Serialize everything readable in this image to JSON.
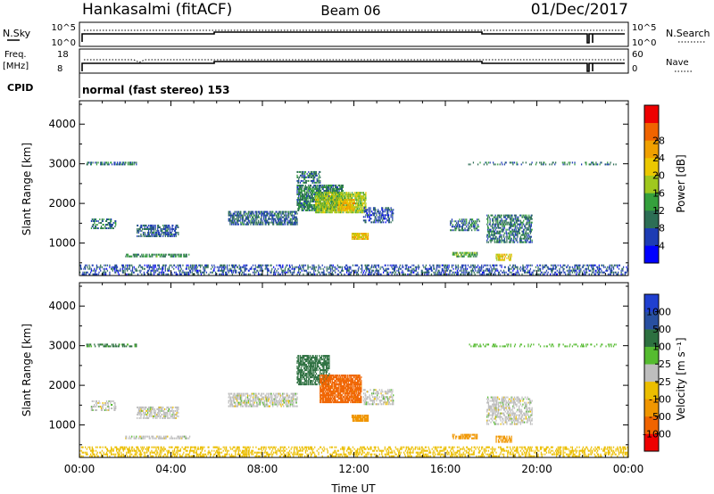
{
  "header": {
    "station": "Hankasalmi (fitACF)",
    "beam": "Beam 06",
    "date": "01/Dec/2017"
  },
  "side_labels": {
    "nsky": "N.Sky",
    "nsearch": "N.Search",
    "freq_line1": "Freq.",
    "freq_line2": "[MHz]",
    "nave": "Nave",
    "cpid": "CPID",
    "cpid_value": "normal (fast stereo) 153",
    "nsky_ticks": [
      "10^5",
      "10^0"
    ],
    "nsearch_ticks": [
      "10^5",
      "10^0"
    ],
    "freq_ticks": [
      "18",
      "8"
    ],
    "nave_ticks": [
      "60",
      "0"
    ]
  },
  "colorbars": {
    "power": {
      "label": "Power [dB]",
      "ticks": [
        "4",
        "8",
        "12",
        "16",
        "20",
        "24",
        "28"
      ],
      "colors": [
        "#0000ff",
        "#1e3cb4",
        "#2d6e55",
        "#35a03c",
        "#a0c81e",
        "#ebc800",
        "#f0a000",
        "#f06400",
        "#ee0000"
      ]
    },
    "velocity": {
      "label": "Velocity [m s⁻¹]",
      "ticks": [
        "1000",
        "500",
        "100",
        "25",
        "-25",
        "-100",
        "-500",
        "-1000"
      ],
      "colors": [
        "#2040d0",
        "#284fa0",
        "#2d7040",
        "#55bb30",
        "#bebebe",
        "#ebbe00",
        "#f09600",
        "#f06400",
        "#ee0000"
      ]
    }
  },
  "chart_data": [
    {
      "type": "heatmap",
      "name": "Power",
      "xlabel": "",
      "ylabel": "Slant Range [km]",
      "x_ticks": [
        "00:00",
        "04:00",
        "08:00",
        "12:00",
        "16:00",
        "20:00",
        "00:00"
      ],
      "y_ticks": [
        "1000",
        "2000",
        "3000",
        "4000"
      ],
      "x_range_hours": [
        0,
        24
      ],
      "y_range_km": [
        180,
        4590
      ],
      "colorbar": "Power [dB]",
      "value_range": [
        0,
        30
      ],
      "regions": [
        {
          "t0": 0.0,
          "t1": 24.0,
          "r0": 190,
          "r1": 420,
          "v": 6,
          "density": 0.35
        },
        {
          "t0": 0.3,
          "t1": 2.5,
          "r0": 2960,
          "r1": 3020,
          "v": 8,
          "density": 0.45
        },
        {
          "t0": 0.5,
          "t1": 1.6,
          "r0": 1350,
          "r1": 1620,
          "v": 8,
          "density": 0.4
        },
        {
          "t0": 2.5,
          "t1": 4.3,
          "r0": 1150,
          "r1": 1450,
          "v": 7,
          "density": 0.55
        },
        {
          "t0": 2.0,
          "t1": 4.8,
          "r0": 640,
          "r1": 720,
          "v": 10,
          "density": 0.5
        },
        {
          "t0": 6.5,
          "t1": 9.5,
          "r0": 1450,
          "r1": 1800,
          "v": 7,
          "density": 0.6
        },
        {
          "t0": 9.5,
          "t1": 11.5,
          "r0": 1800,
          "r1": 2450,
          "v": 9,
          "density": 0.7
        },
        {
          "t0": 10.3,
          "t1": 12.5,
          "r0": 1750,
          "r1": 2250,
          "v": 15,
          "density": 0.75
        },
        {
          "t0": 11.3,
          "t1": 12.0,
          "r0": 1800,
          "r1": 2100,
          "v": 20,
          "density": 0.7
        },
        {
          "t0": 11.9,
          "t1": 12.6,
          "r0": 1080,
          "r1": 1250,
          "v": 19,
          "density": 0.8
        },
        {
          "t0": 12.4,
          "t1": 13.7,
          "r0": 1500,
          "r1": 1900,
          "v": 6,
          "density": 0.45
        },
        {
          "t0": 16.2,
          "t1": 17.5,
          "r0": 1300,
          "r1": 1600,
          "v": 8,
          "density": 0.45
        },
        {
          "t0": 16.3,
          "t1": 17.4,
          "r0": 640,
          "r1": 760,
          "v": 12,
          "density": 0.6
        },
        {
          "t0": 17.8,
          "t1": 19.8,
          "r0": 1000,
          "r1": 1700,
          "v": 8,
          "density": 0.5
        },
        {
          "t0": 18.2,
          "t1": 18.9,
          "r0": 550,
          "r1": 700,
          "v": 18,
          "density": 0.6
        },
        {
          "t0": 17.0,
          "t1": 23.5,
          "r0": 2960,
          "r1": 3020,
          "v": 8,
          "density": 0.25
        },
        {
          "t0": 9.5,
          "t1": 10.5,
          "r0": 2500,
          "r1": 2800,
          "v": 8,
          "density": 0.5
        }
      ]
    },
    {
      "type": "heatmap",
      "name": "Velocity",
      "xlabel": "Time UT",
      "ylabel": "Slant Range [km]",
      "x_ticks": [
        "00:00",
        "04:00",
        "08:00",
        "12:00",
        "16:00",
        "20:00",
        "00:00"
      ],
      "y_ticks": [
        "1000",
        "2000",
        "3000",
        "4000"
      ],
      "x_range_hours": [
        0,
        24
      ],
      "y_range_km": [
        180,
        4590
      ],
      "colorbar": "Velocity [m s⁻¹]",
      "regions": [
        {
          "t0": 0.0,
          "t1": 24.0,
          "r0": 190,
          "r1": 420,
          "v": -60,
          "density": 0.35
        },
        {
          "t0": 0.3,
          "t1": 2.5,
          "r0": 2960,
          "r1": 3020,
          "v": 120,
          "density": 0.45
        },
        {
          "t0": 0.5,
          "t1": 1.6,
          "r0": 1350,
          "r1": 1620,
          "v": 0,
          "density": 0.35
        },
        {
          "t0": 2.5,
          "t1": 4.3,
          "r0": 1150,
          "r1": 1450,
          "v": 0,
          "density": 0.55
        },
        {
          "t0": 2.0,
          "t1": 4.8,
          "r0": 640,
          "r1": 720,
          "v": 0,
          "density": 0.5
        },
        {
          "t0": 6.5,
          "t1": 9.5,
          "r0": 1450,
          "r1": 1800,
          "v": 0,
          "density": 0.55
        },
        {
          "t0": 9.5,
          "t1": 10.9,
          "r0": 2000,
          "r1": 2750,
          "v": 200,
          "density": 0.65
        },
        {
          "t0": 10.5,
          "t1": 12.3,
          "r0": 1550,
          "r1": 2250,
          "v": -700,
          "density": 0.8
        },
        {
          "t0": 11.9,
          "t1": 12.6,
          "r0": 1080,
          "r1": 1250,
          "v": -150,
          "density": 0.8
        },
        {
          "t0": 12.4,
          "t1": 13.7,
          "r0": 1500,
          "r1": 1900,
          "v": 0,
          "density": 0.4
        },
        {
          "t0": 16.3,
          "t1": 17.4,
          "r0": 640,
          "r1": 760,
          "v": -150,
          "density": 0.6
        },
        {
          "t0": 17.8,
          "t1": 19.8,
          "r0": 1000,
          "r1": 1700,
          "v": 0,
          "density": 0.45
        },
        {
          "t0": 18.2,
          "t1": 18.9,
          "r0": 550,
          "r1": 700,
          "v": -200,
          "density": 0.6
        },
        {
          "t0": 17.0,
          "t1": 23.5,
          "r0": 2960,
          "r1": 3020,
          "v": 60,
          "density": 0.25
        }
      ]
    }
  ]
}
